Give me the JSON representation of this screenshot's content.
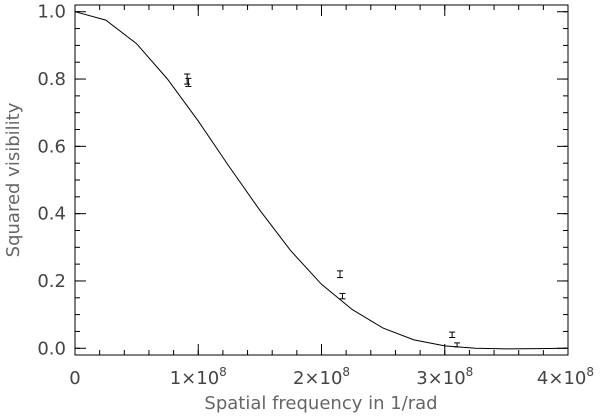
{
  "chart_data": {
    "type": "scatter",
    "xlabel": "Spatial frequency in 1/rad",
    "ylabel": "Squared visibility",
    "xlim": [
      0,
      400000000
    ],
    "ylim": [
      -0.02,
      1.02
    ],
    "x_ticks": [
      {
        "value": 0,
        "mantissa": "0",
        "power": ""
      },
      {
        "value": 100000000,
        "mantissa": "1×10",
        "power": "8"
      },
      {
        "value": 200000000,
        "mantissa": "2×10",
        "power": "8"
      },
      {
        "value": 300000000,
        "mantissa": "3×10",
        "power": "8"
      },
      {
        "value": 400000000,
        "mantissa": "4×10",
        "power": "8"
      }
    ],
    "y_ticks": [
      {
        "value": 0.0,
        "label": "0.0"
      },
      {
        "value": 0.2,
        "label": "0.2"
      },
      {
        "value": 0.4,
        "label": "0.4"
      },
      {
        "value": 0.6,
        "label": "0.6"
      },
      {
        "value": 0.8,
        "label": "0.8"
      },
      {
        "value": 1.0,
        "label": "1.0"
      }
    ],
    "x_minor_step": 20000000,
    "y_minor_step": 0.05,
    "grid": false,
    "series": [
      {
        "type": "line",
        "description": "model curve",
        "x": [
          0,
          25000000,
          50000000,
          75000000,
          100000000,
          125000000,
          150000000,
          175000000,
          200000000,
          225000000,
          250000000,
          275000000,
          300000000,
          325000000,
          350000000,
          375000000,
          400000000
        ],
        "y": [
          1.0,
          0.975,
          0.905,
          0.8,
          0.675,
          0.54,
          0.41,
          0.29,
          0.19,
          0.115,
          0.06,
          0.025,
          0.007,
          0.0,
          -0.002,
          -0.001,
          0.0
        ]
      },
      {
        "type": "errorbar",
        "description": "measurements",
        "x": [
          91000000,
          92000000,
          215000000,
          217000000,
          306000000,
          310000000
        ],
        "y": [
          0.8,
          0.79,
          0.22,
          0.155,
          0.04,
          0.01
        ],
        "err": [
          0.015,
          0.012,
          0.01,
          0.008,
          0.008,
          0.006
        ]
      }
    ]
  }
}
